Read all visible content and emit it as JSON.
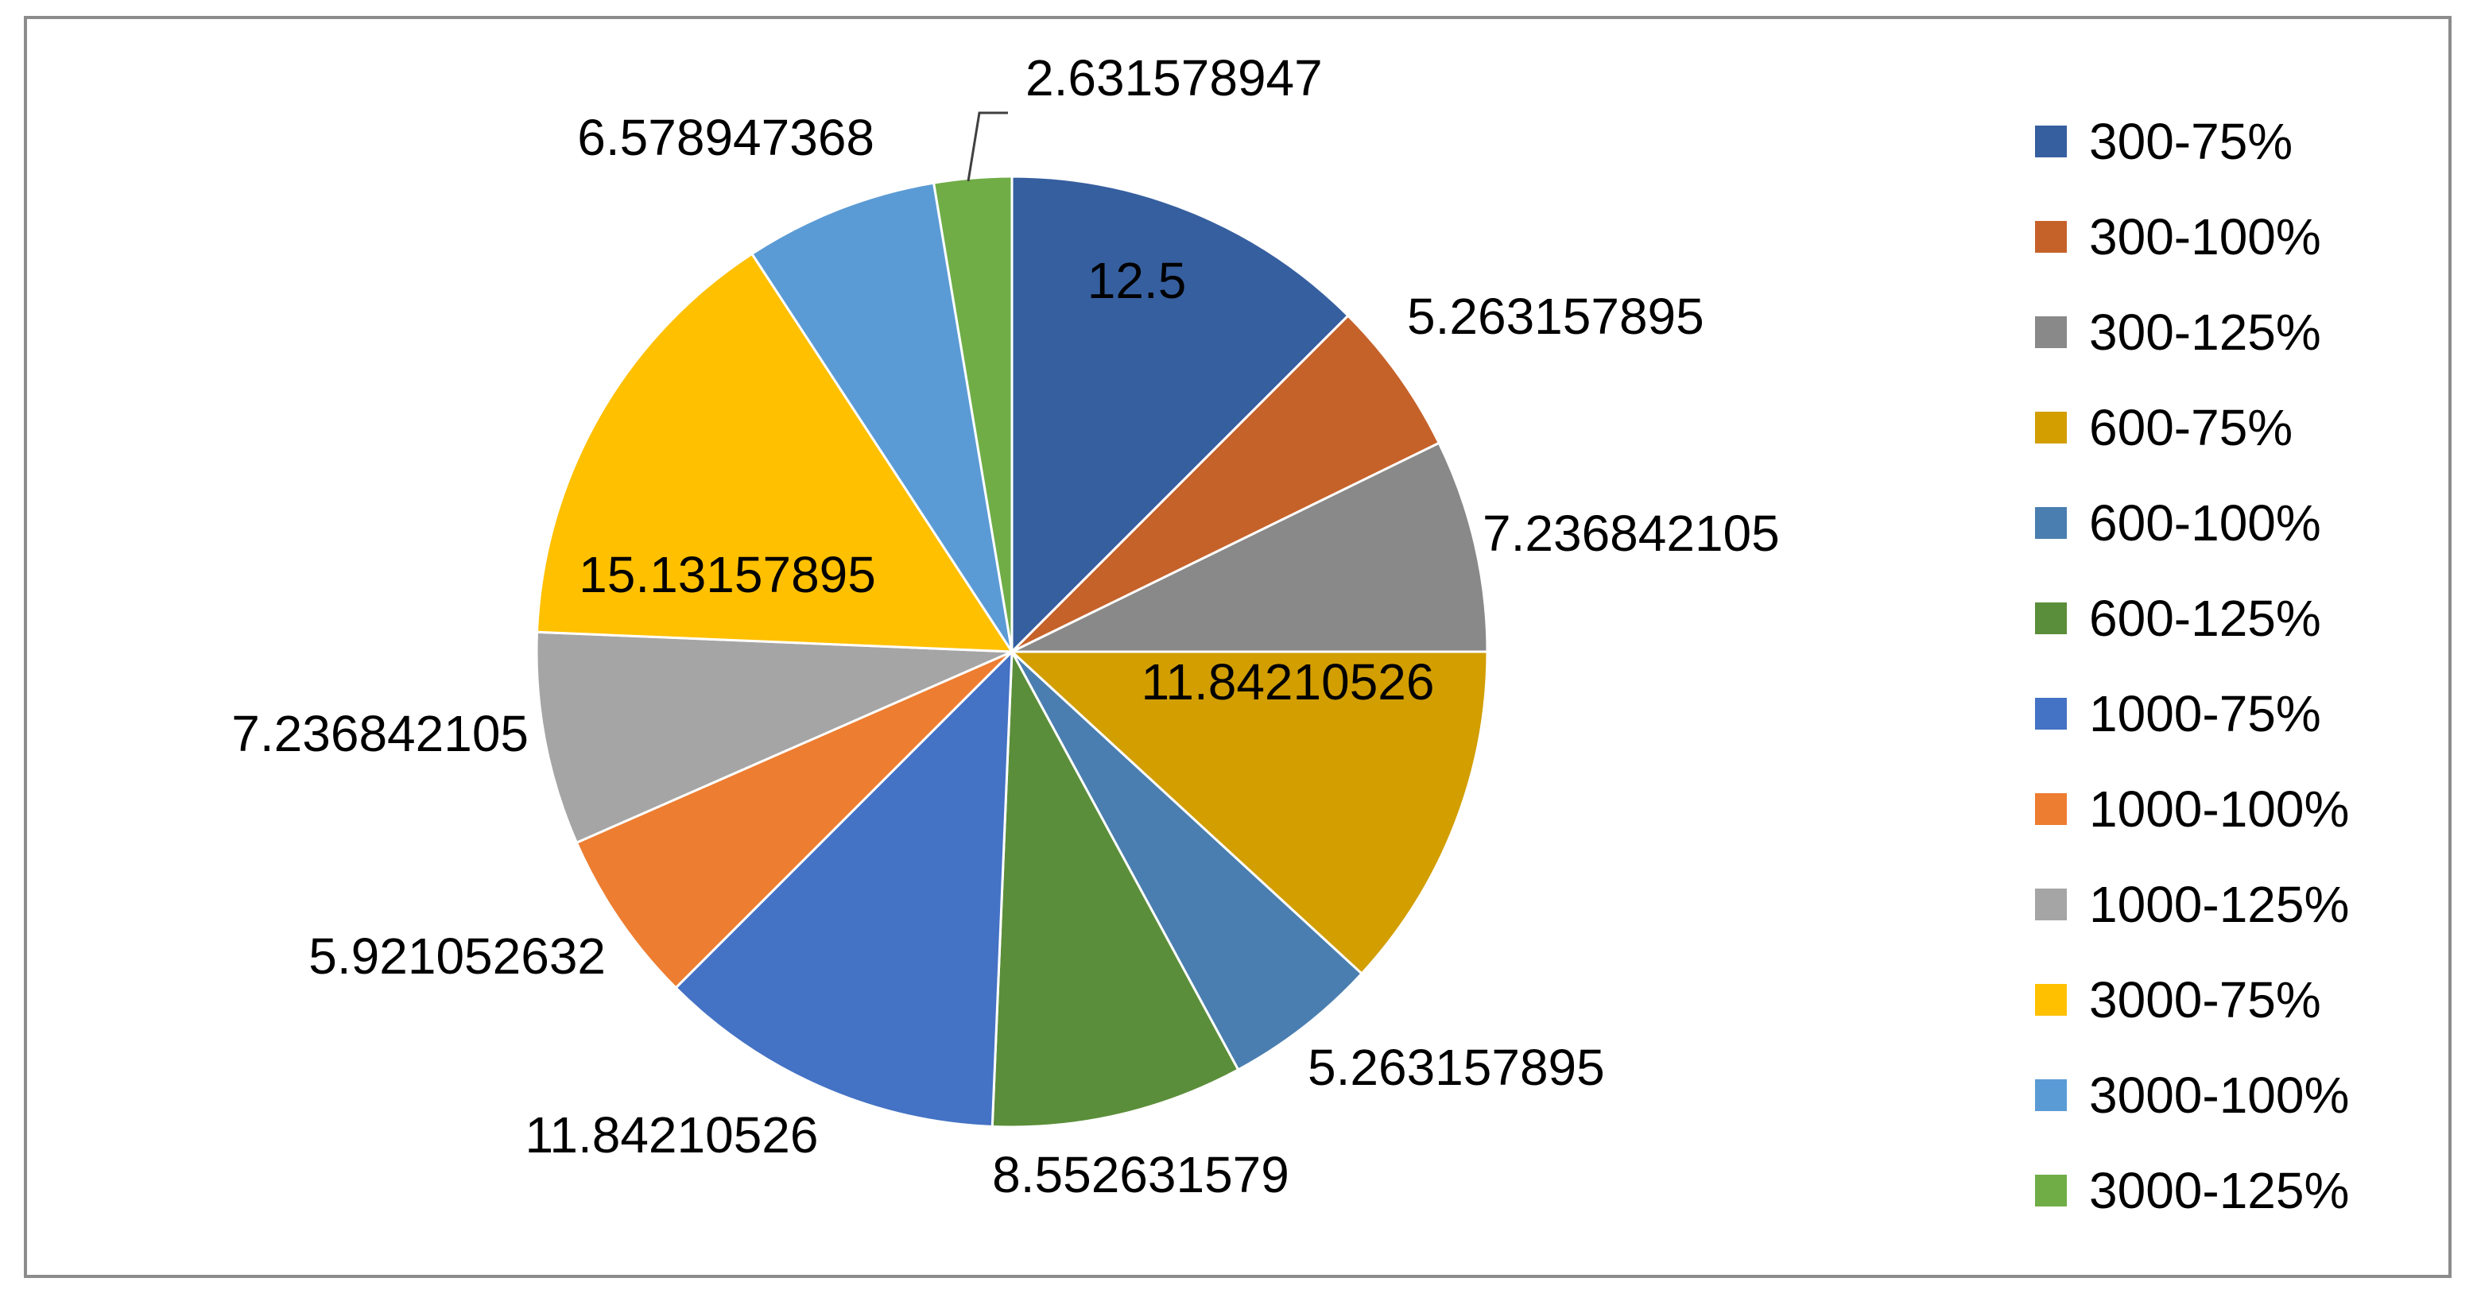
{
  "chart_data": {
    "type": "pie",
    "title": "",
    "legend_position": "right",
    "start_angle_deg": 0,
    "direction": "clockwise",
    "slices": [
      {
        "label": "300-75%",
        "value": 12.5,
        "display": "12.5",
        "color": "#365F9F"
      },
      {
        "label": "300-100%",
        "value": 5.263157895,
        "display": "5.263157895",
        "color": "#C5622A"
      },
      {
        "label": "300-125%",
        "value": 7.236842105,
        "display": "7.236842105",
        "color": "#898989"
      },
      {
        "label": "600-75%",
        "value": 11.84210526,
        "display": "11.84210526",
        "color": "#D29E00"
      },
      {
        "label": "600-100%",
        "value": 5.263157895,
        "display": "5.263157895",
        "color": "#4A7EB0"
      },
      {
        "label": "600-125%",
        "value": 8.552631579,
        "display": "8.552631579",
        "color": "#5B8E3A"
      },
      {
        "label": "1000-75%",
        "value": 11.84210526,
        "display": "11.84210526",
        "color": "#4472C4"
      },
      {
        "label": "1000-100%",
        "value": 5.921052632,
        "display": "5.921052632",
        "color": "#ED7D31"
      },
      {
        "label": "1000-125%",
        "value": 7.236842105,
        "display": "7.236842105",
        "color": "#A5A5A5"
      },
      {
        "label": "3000-75%",
        "value": 15.13157895,
        "display": "15.13157895",
        "color": "#FFC000"
      },
      {
        "label": "3000-100%",
        "value": 6.578947368,
        "display": "6.578947368",
        "color": "#5B9BD5"
      },
      {
        "label": "3000-125%",
        "value": 2.631578947,
        "display": "2.631578947",
        "color": "#70AD47"
      }
    ]
  }
}
